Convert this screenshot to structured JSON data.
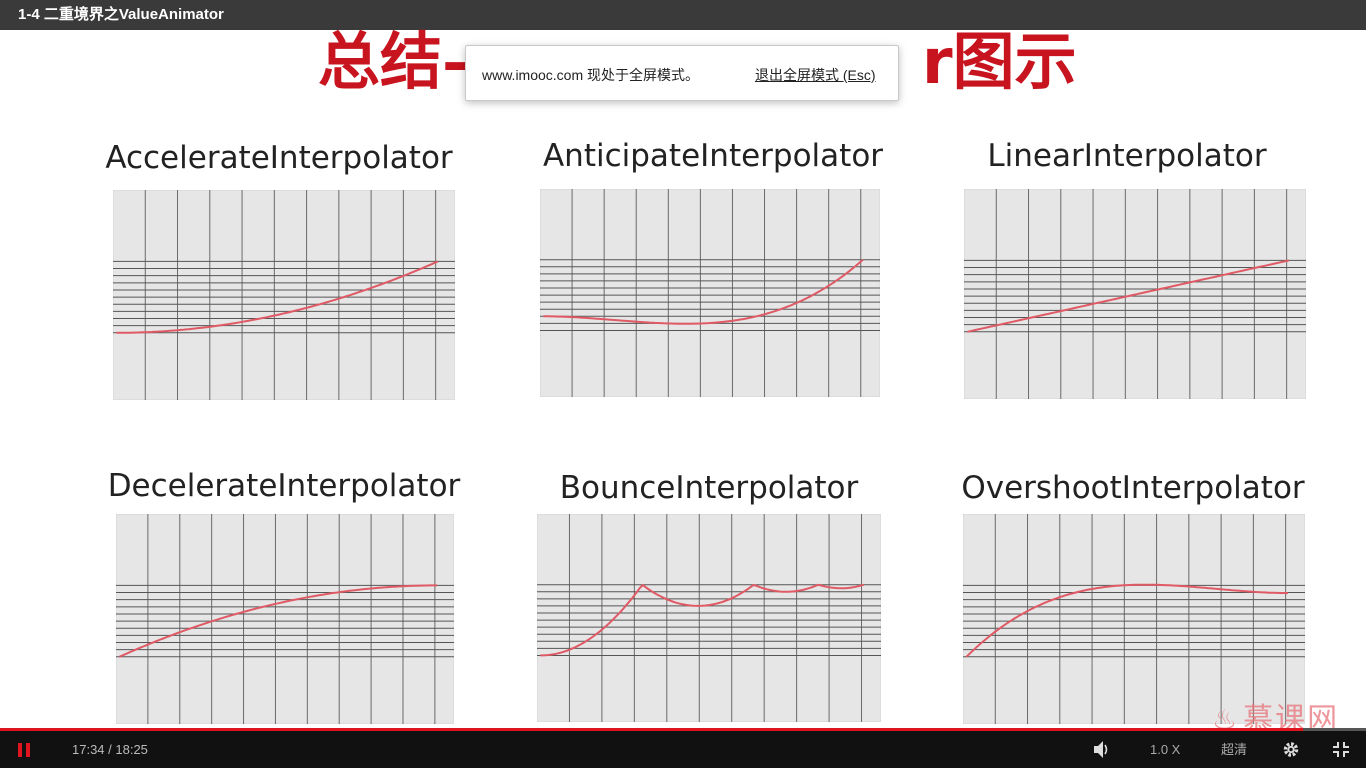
{
  "window": {
    "title": "1-4 二重境界之ValueAnimator"
  },
  "slide": {
    "title_left": "总结—",
    "title_right": "r图示"
  },
  "notice": {
    "message": "www.imooc.com 现处于全屏模式。",
    "exit_link": "退出全屏模式 (Esc)"
  },
  "panels": [
    {
      "label": "AccelerateInterpolator",
      "curve": "accelerate"
    },
    {
      "label": "AnticipateInterpolator",
      "curve": "anticipate"
    },
    {
      "label": "LinearInterpolator",
      "curve": "linear"
    },
    {
      "label": "DecelerateInterpolator",
      "curve": "decelerate"
    },
    {
      "label": "BounceInterpolator",
      "curve": "bounce"
    },
    {
      "label": "OvershootInterpolator",
      "curve": "overshoot"
    }
  ],
  "watermark": {
    "text": "慕课网",
    "icon": "flame-icon"
  },
  "player": {
    "time": "17:34 / 18:25",
    "progress": 0.954,
    "speed": "1.0 X",
    "quality": "超清",
    "accent_color": "#e0141e",
    "icons": {
      "play_state": "pause-icon",
      "volume": "volume-icon",
      "settings": "gear-icon",
      "fullscreen": "exit-fullscreen-icon"
    }
  },
  "colors": {
    "title_red": "#c8141e",
    "curve": "#e05a66",
    "grid_bg": "#e6e6e6",
    "grid_line": "#555555"
  }
}
